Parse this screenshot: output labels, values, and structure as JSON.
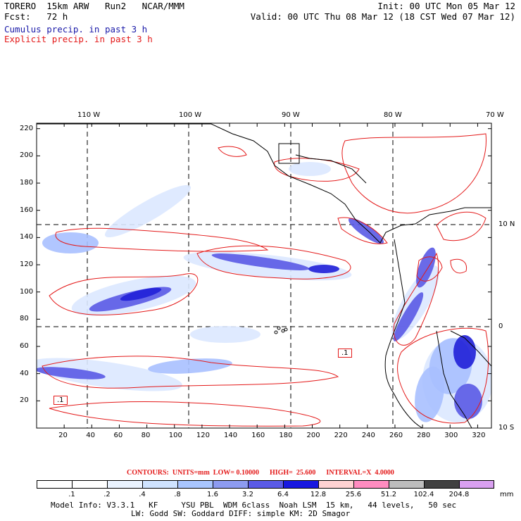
{
  "header": {
    "model": "TORERO  15km ARW   Run2   NCAR/MMM",
    "init": "Init: 00 UTC Mon 05 Mar 12",
    "fcst": "Fcst:   72 h",
    "valid": "Valid: 00 UTC Thu 08 Mar 12 (18 CST Wed 07 Mar 12)",
    "field1": "Cumulus precip. in past 3 h",
    "field2": "Explicit precip. in past 3 h"
  },
  "map": {
    "lon_labels": [
      "110 W",
      "100 W",
      "90 W",
      "80 W",
      "70 W"
    ],
    "lat_labels": [
      "10 N",
      "0",
      "10 S"
    ],
    "x_ticks": [
      "20",
      "40",
      "60",
      "80",
      "100",
      "120",
      "140",
      "160",
      "180",
      "200",
      "220",
      "240",
      "260",
      "280",
      "300",
      "320"
    ],
    "y_ticks": [
      "20",
      "40",
      "60",
      "80",
      "100",
      "120",
      "140",
      "160",
      "180",
      "200",
      "220"
    ],
    "contour_labels": [
      ".1",
      ".1"
    ]
  },
  "contours_info": "CONTOURS:  UNITS=mm  LOW= 0.10000      HIGH=  25.600      INTERVAL=X  4.0000",
  "colorbar": {
    "unit": "mm",
    "labels": [
      ".1",
      ".2",
      ".4",
      ".8",
      "1.6",
      "3.2",
      "6.4",
      "12.8",
      "25.6",
      "51.2",
      "102.4",
      "204.8"
    ],
    "colors": [
      "#ffffff",
      "#ffffff",
      "#eaf3ff",
      "#cfe3ff",
      "#a9c6ff",
      "#8d9bf0",
      "#5a5ae6",
      "#1818e0",
      "#ffd2d2",
      "#ff8cc0",
      "#bdbdbd",
      "#404040",
      "#d9a0f0"
    ]
  },
  "footer": {
    "line1": "Model Info: V3.3.1   KF     YSU PBL  WDM 6class  Noah LSM  15 km,   44 levels,   50 sec",
    "line2": "LW: Godd SW: Goddard DIFF: simple KM: 2D Smagor"
  }
}
